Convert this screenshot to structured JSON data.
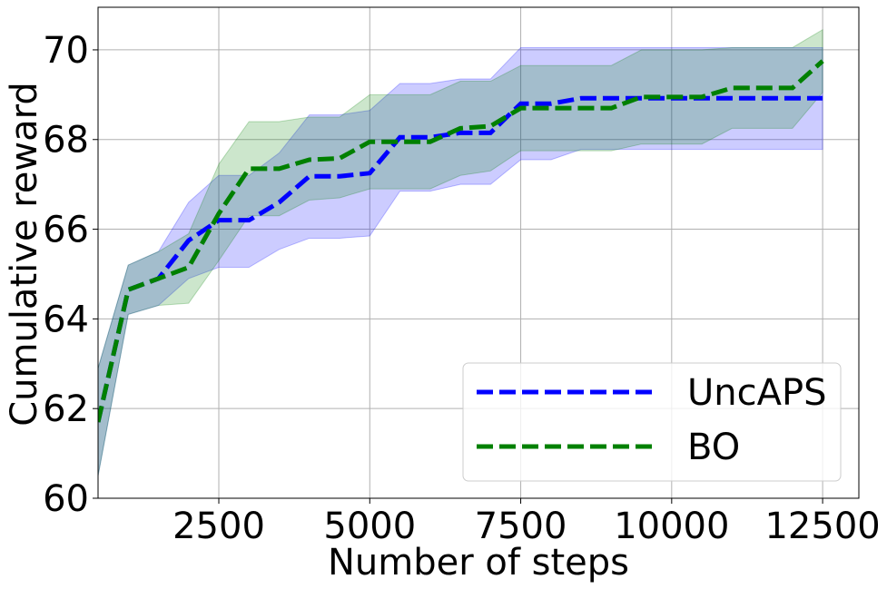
{
  "chart_data": {
    "type": "line",
    "x_label": "Number of steps",
    "y_label": "Cumulative reward",
    "x": [
      500,
      1000,
      1500,
      2000,
      2500,
      3000,
      3500,
      4000,
      4500,
      5000,
      5500,
      6000,
      6500,
      7000,
      7500,
      8000,
      8500,
      9000,
      9500,
      10000,
      10500,
      11000,
      11500,
      12000,
      12500
    ],
    "series": [
      {
        "name": "UncAPS",
        "color": "#0000ff",
        "values": [
          61.7,
          64.65,
          64.9,
          65.75,
          66.2,
          66.2,
          66.6,
          67.18,
          67.18,
          67.25,
          68.05,
          68.05,
          68.15,
          68.15,
          68.8,
          68.8,
          68.92,
          68.92,
          68.92,
          68.92,
          68.92,
          68.92,
          68.92,
          68.92,
          68.92
        ],
        "lower": [
          60.5,
          64.1,
          64.3,
          64.9,
          65.15,
          65.15,
          65.55,
          65.8,
          65.8,
          65.85,
          66.85,
          66.85,
          67.0,
          67.0,
          67.55,
          67.55,
          67.78,
          67.78,
          67.78,
          67.78,
          67.78,
          67.78,
          67.78,
          67.78,
          67.78
        ],
        "upper": [
          62.9,
          65.2,
          65.5,
          66.6,
          67.2,
          67.2,
          67.7,
          68.55,
          68.55,
          68.65,
          69.25,
          69.25,
          69.35,
          69.35,
          70.05,
          70.05,
          70.05,
          70.05,
          70.05,
          70.05,
          70.05,
          70.05,
          70.05,
          70.05,
          70.05
        ]
      },
      {
        "name": "BO",
        "color": "#008000",
        "values": [
          61.7,
          64.65,
          64.9,
          65.15,
          66.35,
          67.35,
          67.35,
          67.55,
          67.58,
          67.95,
          67.95,
          67.95,
          68.25,
          68.3,
          68.7,
          68.7,
          68.7,
          68.7,
          68.95,
          68.95,
          68.95,
          69.15,
          69.15,
          69.15,
          69.75
        ],
        "lower": [
          60.5,
          64.1,
          64.3,
          64.35,
          65.3,
          66.3,
          66.3,
          66.65,
          66.7,
          66.9,
          66.9,
          66.9,
          67.2,
          67.3,
          67.75,
          67.75,
          67.75,
          67.75,
          67.9,
          67.9,
          67.9,
          68.25,
          68.25,
          68.25,
          69.05
        ],
        "upper": [
          62.9,
          65.2,
          65.5,
          65.9,
          67.45,
          68.4,
          68.4,
          68.5,
          68.5,
          69.0,
          69.0,
          69.0,
          69.3,
          69.3,
          69.65,
          69.65,
          69.65,
          69.65,
          70.0,
          70.0,
          70.0,
          70.05,
          70.05,
          70.05,
          70.45
        ]
      }
    ],
    "xlim": [
      500,
      13100
    ],
    "ylim": [
      60,
      70.95
    ],
    "xticks": [
      2500,
      5000,
      7500,
      10000,
      12500
    ],
    "yticks": [
      60,
      62,
      64,
      66,
      68,
      70
    ],
    "grid": true,
    "legend": "lower right"
  }
}
